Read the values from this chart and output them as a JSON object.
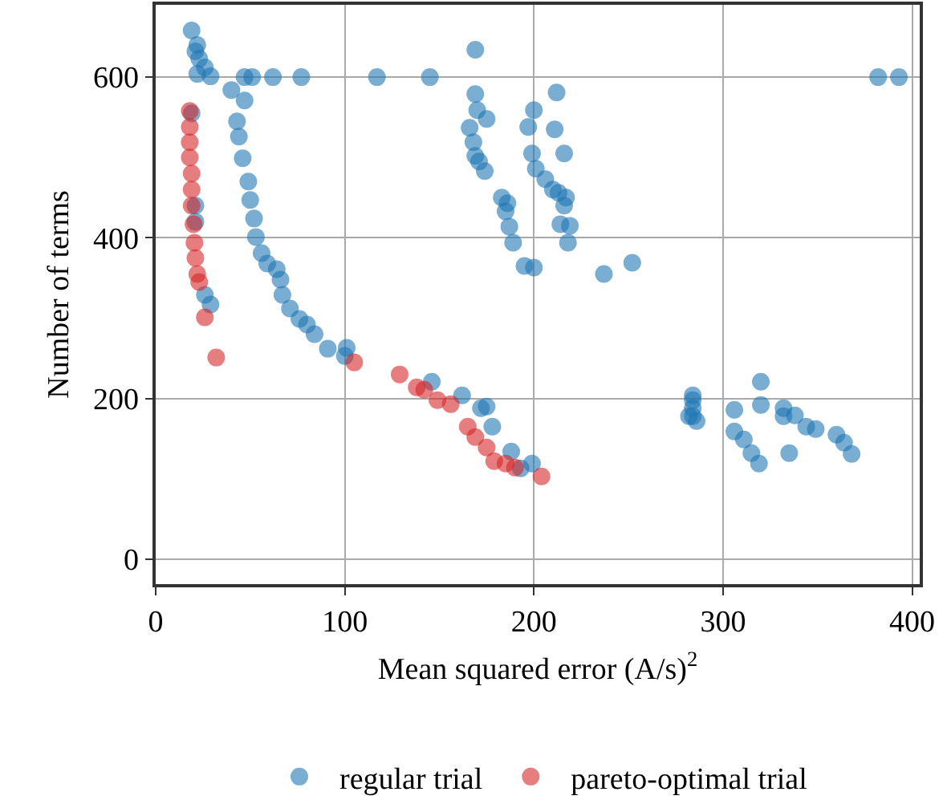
{
  "chart_data": {
    "type": "scatter",
    "xlabel": "Mean squared error (A/s)$^{2}$",
    "ylabel": "Number of terms",
    "xlim": [
      0,
      404
    ],
    "ylim": [
      -31,
      690
    ],
    "xticks": [
      0,
      100,
      200,
      300,
      400
    ],
    "yticks": [
      0,
      200,
      400,
      600
    ],
    "grid": true,
    "legend": "bottom",
    "marker": "circle",
    "series": [
      {
        "name": "regular trial",
        "color": "#1f77b4",
        "x": [
          19,
          22,
          21,
          23,
          22,
          26,
          29,
          47,
          51,
          62,
          77,
          117,
          145,
          169,
          382,
          393,
          19,
          21,
          21,
          26,
          29,
          40,
          43,
          47,
          44,
          46,
          49,
          50,
          52,
          53,
          56,
          59,
          64,
          66,
          67,
          71,
          76,
          80,
          84,
          91,
          101,
          100,
          146,
          162,
          172,
          175,
          178,
          188,
          199,
          193,
          169,
          170,
          175,
          166,
          168,
          169,
          171,
          174,
          183,
          186,
          185,
          187,
          189,
          195,
          200,
          200,
          197,
          212,
          211,
          216,
          199,
          201,
          206,
          210,
          213,
          217,
          216,
          219,
          214,
          218,
          237,
          252,
          284,
          284,
          284,
          282,
          286,
          284,
          306,
          306,
          311,
          315,
          319,
          320,
          320,
          332,
          332,
          338,
          335,
          344,
          349,
          360,
          364,
          368
        ],
        "values": [
          658,
          640,
          632,
          623,
          604,
          612,
          601,
          600,
          600,
          600,
          600,
          600,
          600,
          634,
          600,
          600,
          555,
          420,
          440,
          329,
          317,
          584,
          545,
          571,
          526,
          499,
          470,
          447,
          424,
          401,
          381,
          368,
          361,
          348,
          329,
          312,
          299,
          292,
          280,
          262,
          263,
          253,
          221,
          204,
          188,
          190,
          165,
          134,
          119,
          113,
          579,
          559,
          548,
          537,
          519,
          502,
          495,
          483,
          450,
          443,
          433,
          414,
          394,
          365,
          363,
          559,
          538,
          581,
          535,
          505,
          505,
          486,
          473,
          460,
          456,
          450,
          440,
          415,
          417,
          394,
          355,
          369,
          198,
          178,
          204,
          178,
          172,
          188,
          186,
          159,
          149,
          132,
          119,
          221,
          192,
          188,
          178,
          179,
          132,
          165,
          162,
          155,
          145,
          131
        ]
      },
      {
        "name": "pareto-optimal trial",
        "color": "#d62728",
        "x": [
          18,
          18,
          18,
          18,
          19,
          19,
          19,
          20,
          20.5,
          21,
          22,
          23,
          26,
          32,
          105,
          129,
          138,
          142,
          149,
          156,
          165,
          169,
          175,
          179,
          185,
          190,
          204
        ],
        "values": [
          558,
          538,
          519,
          500,
          480,
          460,
          440,
          417,
          394,
          375,
          355,
          345,
          301,
          251,
          245,
          230,
          214,
          211,
          198,
          193,
          165,
          152,
          139,
          122,
          119,
          114,
          103
        ]
      }
    ]
  }
}
